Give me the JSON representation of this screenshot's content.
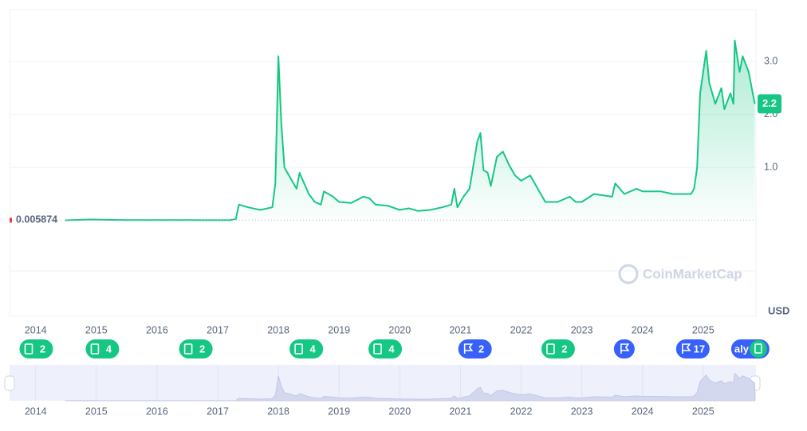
{
  "chart_data": {
    "type": "line",
    "x": [
      2014.49,
      2014.9,
      2015.5,
      2016.5,
      2017.2,
      2017.3,
      2017.35,
      2017.5,
      2017.7,
      2017.9,
      2017.95,
      2018.0,
      2018.05,
      2018.1,
      2018.2,
      2018.3,
      2018.35,
      2018.5,
      2018.6,
      2018.7,
      2018.75,
      2018.9,
      2019.0,
      2019.2,
      2019.4,
      2019.5,
      2019.6,
      2019.8,
      2020.0,
      2020.15,
      2020.3,
      2020.5,
      2020.7,
      2020.85,
      2020.9,
      2020.95,
      2021.05,
      2021.15,
      2021.28,
      2021.33,
      2021.38,
      2021.45,
      2021.5,
      2021.6,
      2021.7,
      2021.8,
      2021.9,
      2022.0,
      2022.15,
      2022.3,
      2022.4,
      2022.6,
      2022.8,
      2022.9,
      2023.0,
      2023.2,
      2023.5,
      2023.55,
      2023.7,
      2023.9,
      2024.0,
      2024.3,
      2024.5,
      2024.8,
      2024.85,
      2024.9,
      2024.95,
      2025.05,
      2025.1,
      2025.2,
      2025.3,
      2025.35,
      2025.45,
      2025.5,
      2025.52,
      2025.6,
      2025.65,
      2025.75,
      2025.8,
      2025.85
    ],
    "values": [
      0.005,
      0.02,
      0.008,
      0.007,
      0.006,
      0.03,
      0.3,
      0.25,
      0.2,
      0.25,
      0.7,
      3.1,
      1.8,
      1.0,
      0.8,
      0.6,
      0.9,
      0.5,
      0.35,
      0.3,
      0.55,
      0.45,
      0.35,
      0.33,
      0.45,
      0.42,
      0.3,
      0.28,
      0.2,
      0.23,
      0.18,
      0.2,
      0.25,
      0.3,
      0.6,
      0.25,
      0.45,
      0.6,
      1.5,
      1.65,
      0.95,
      0.9,
      0.65,
      1.2,
      1.3,
      1.05,
      0.85,
      0.75,
      0.85,
      0.55,
      0.35,
      0.35,
      0.45,
      0.35,
      0.35,
      0.5,
      0.45,
      0.7,
      0.5,
      0.6,
      0.55,
      0.55,
      0.5,
      0.5,
      0.6,
      1.0,
      2.4,
      3.2,
      2.6,
      2.2,
      2.5,
      2.1,
      2.4,
      2.2,
      3.4,
      2.8,
      3.1,
      2.8,
      2.5,
      2.2
    ],
    "color": "#16c784",
    "xlim": [
      2013.57,
      2025.87
    ],
    "xticks": [
      2014,
      2015,
      2016,
      2017,
      2018,
      2019,
      2020,
      2021,
      2022,
      2023,
      2024,
      2025
    ],
    "ylim": [
      -0.95,
      3.98
    ],
    "yticks": [
      {
        "value": 1,
        "label": "1.0"
      },
      {
        "value": 2,
        "label": "2.0"
      },
      {
        "value": 3,
        "label": "3.0"
      }
    ],
    "baseline": 0.005874,
    "last_price": 2.2,
    "currency": "USD",
    "watermark": "CoinMarketCap",
    "events": [
      {
        "x": 2014.01,
        "count": 2,
        "kind": "news"
      },
      {
        "x": 2015.1,
        "count": 4,
        "kind": "news"
      },
      {
        "x": 2016.64,
        "count": 2,
        "kind": "news"
      },
      {
        "x": 2018.46,
        "count": 4,
        "kind": "news"
      },
      {
        "x": 2019.76,
        "count": 4,
        "kind": "news"
      },
      {
        "x": 2021.24,
        "count": 2,
        "kind": "flag"
      },
      {
        "x": 2022.61,
        "count": 2,
        "kind": "news"
      },
      {
        "x": 2023.7,
        "count": null,
        "kind": "flag"
      },
      {
        "x": 2024.83,
        "count": 17,
        "kind": "flag"
      }
    ],
    "event_overflow_text": "aly",
    "event_overflow_x": 2025.33
  }
}
